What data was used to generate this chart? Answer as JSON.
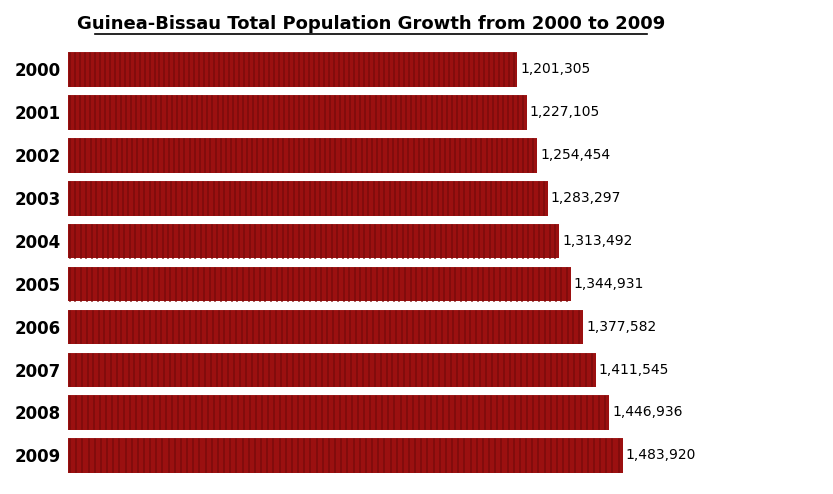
{
  "title": "Guinea-Bissau Total Population Growth from 2000 to 2009",
  "years": [
    "2000",
    "2001",
    "2002",
    "2003",
    "2004",
    "2005",
    "2006",
    "2007",
    "2008",
    "2009"
  ],
  "values": [
    1201305,
    1227105,
    1254454,
    1283297,
    1313492,
    1344931,
    1377582,
    1411545,
    1446936,
    1483920
  ],
  "labels": [
    "1,201,305",
    "1,227,105",
    "1,254,454",
    "1,283,297",
    "1,313,492",
    "1,344,931",
    "1,377,582",
    "1,411,545",
    "1,446,936",
    "1,483,920"
  ],
  "bar_color": "#9B1010",
  "stripe_color": "#7A0C0C",
  "background_color": "#ffffff",
  "title_fontsize": 13,
  "label_fontsize": 10,
  "year_fontsize": 12,
  "xlim": [
    0,
    1620000
  ],
  "bar_height": 0.82,
  "num_stripes": 90
}
